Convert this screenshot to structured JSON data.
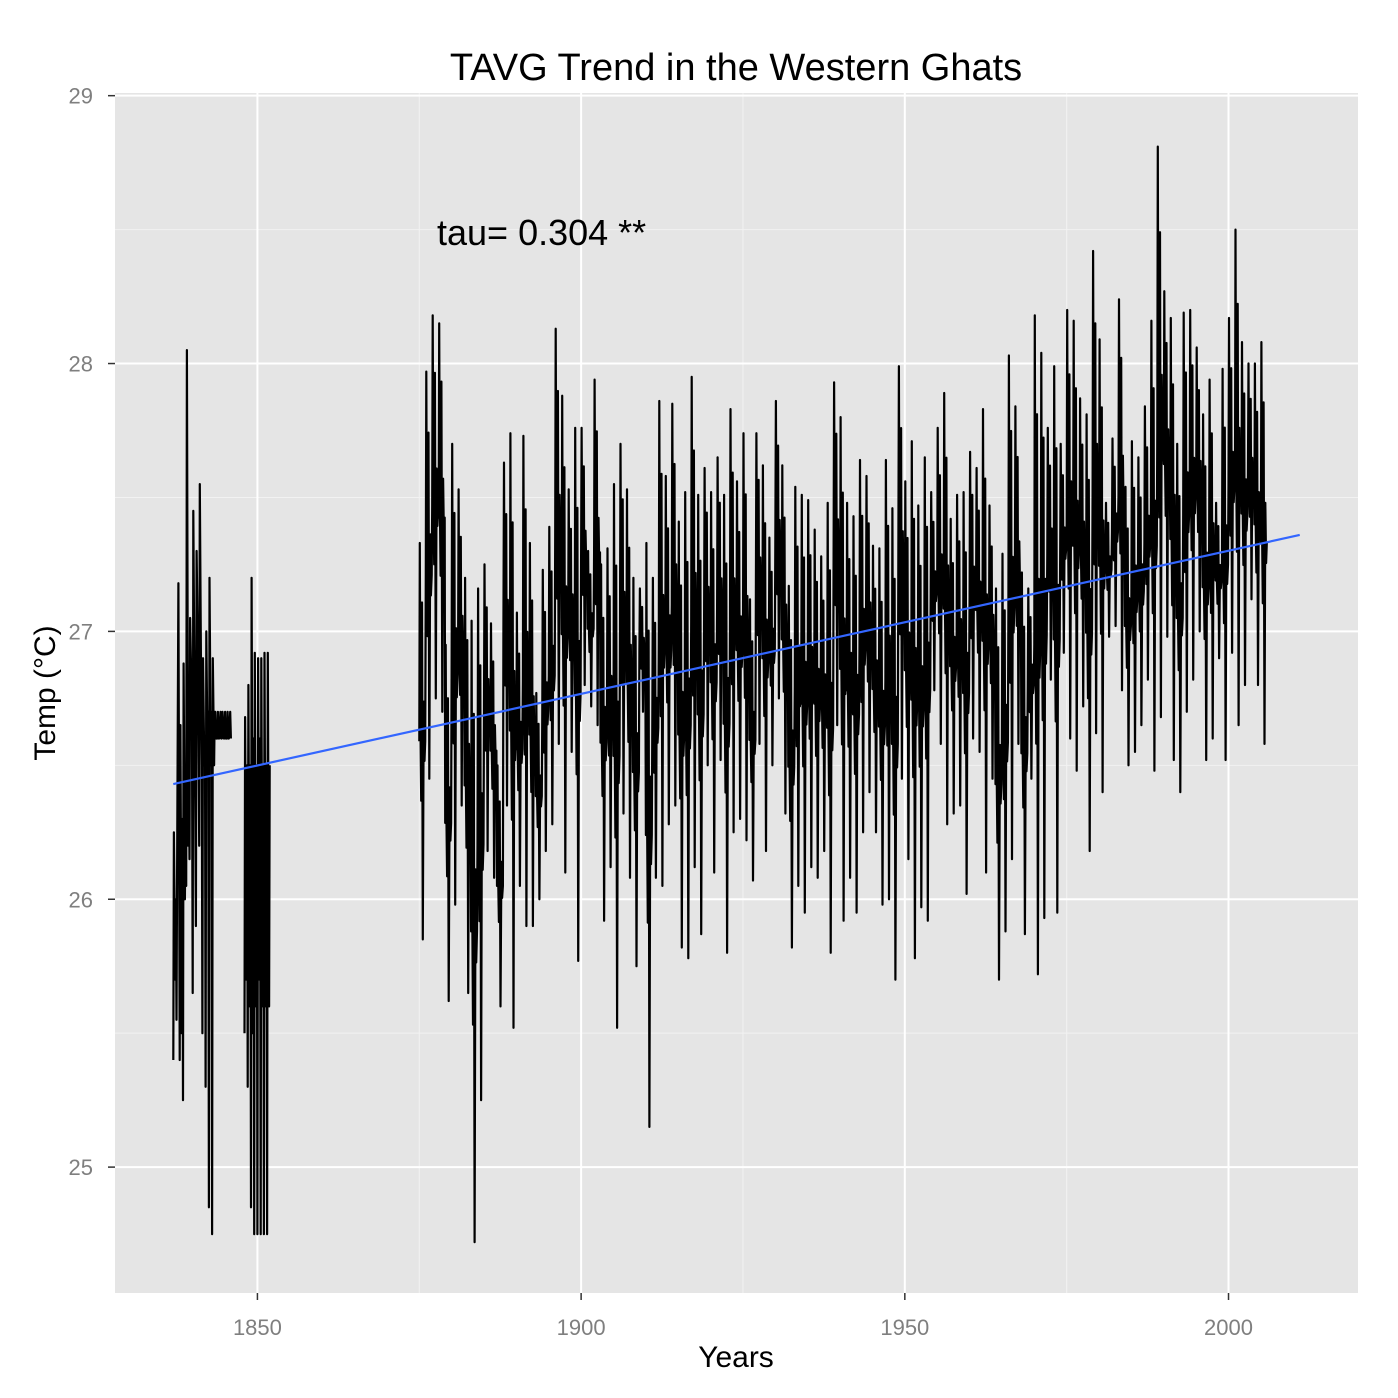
{
  "chart_data": {
    "type": "line",
    "title": "TAVG Trend in the Western Ghats",
    "xlabel": "Years",
    "ylabel": "Temp (°C)",
    "annotation": "tau= 0.304 **",
    "xlim": [
      1828,
      2020
    ],
    "ylim": [
      24.53,
      29.01
    ],
    "x_ticks": [
      1850,
      1900,
      1950,
      2000
    ],
    "y_ticks": [
      25,
      26,
      27,
      28,
      29
    ],
    "grid": true,
    "colors": {
      "panel": "#e5e5e5",
      "grid": "#ffffff",
      "series": "#000000",
      "trend": "#3366ff",
      "tick_label": "#7f7f7f"
    },
    "series": [
      {
        "kind": "monthly",
        "segments": [
          {
            "x": [
              1837.0,
              1837.1,
              1837.3,
              1837.4,
              1837.5,
              1837.6,
              1837.8,
              1837.9,
              1838.0,
              1838.1,
              1838.3,
              1838.4,
              1838.5,
              1838.6,
              1838.8,
              1838.9,
              1839.0,
              1839.1,
              1839.3,
              1839.4,
              1839.5,
              1839.6,
              1839.8,
              1839.9,
              1840.0,
              1840.1,
              1840.3,
              1840.4,
              1840.5,
              1840.6,
              1840.8,
              1840.9,
              1841.0,
              1841.1,
              1841.3,
              1841.4,
              1841.5,
              1841.6,
              1841.8,
              1841.9,
              1842.0,
              1842.1,
              1842.3,
              1842.4,
              1842.5,
              1842.6,
              1842.8,
              1842.9,
              1843.0,
              1843.1,
              1843.3,
              1843.4,
              1843.5,
              1843.6,
              1843.8,
              1843.9,
              1844.0,
              1844.1,
              1844.3,
              1844.4,
              1844.5,
              1844.6,
              1844.8,
              1844.9,
              1845.0,
              1845.1,
              1845.3,
              1845.4,
              1845.5,
              1845.6,
              1845.8,
              1845.9
            ],
            "y": [
              25.4,
              26.25,
              25.7,
              26.0,
              25.55,
              26.1,
              27.18,
              26.3,
              25.4,
              26.65,
              25.5,
              26.3,
              25.25,
              26.88,
              26.0,
              26.4,
              26.05,
              28.05,
              26.2,
              26.5,
              26.15,
              27.05,
              26.8,
              26.6,
              25.65,
              27.45,
              26.7,
              26.3,
              25.9,
              27.3,
              26.9,
              26.6,
              26.2,
              27.55,
              26.8,
              26.5,
              25.5,
              26.9,
              26.5,
              26.6,
              25.3,
              27.0,
              26.5,
              26.7,
              24.85,
              27.2,
              26.5,
              26.7,
              24.75,
              26.9,
              26.5,
              26.7,
              26.7,
              26.6,
              26.6,
              26.7,
              26.6,
              26.6,
              26.7,
              26.6,
              26.6,
              26.7,
              26.6,
              26.6,
              26.7,
              26.6,
              26.6,
              26.7,
              26.6,
              26.6,
              26.7,
              26.6
            ]
          },
          {
            "x": [
              1848.0,
              1848.1,
              1848.3,
              1848.4,
              1848.5,
              1848.6,
              1848.8,
              1848.9,
              1849.0,
              1849.1,
              1849.3,
              1849.4,
              1849.5,
              1849.6,
              1849.8,
              1849.9,
              1850.0,
              1850.1,
              1850.3,
              1850.4,
              1850.5,
              1850.6,
              1850.8,
              1850.9,
              1851.0,
              1851.1,
              1851.3,
              1851.4,
              1851.5,
              1851.6,
              1851.8,
              1851.9
            ],
            "y": [
              25.5,
              26.68,
              25.7,
              26.5,
              25.3,
              26.8,
              25.6,
              26.5,
              24.85,
              27.2,
              25.5,
              26.6,
              24.75,
              26.92,
              25.6,
              26.5,
              24.75,
              26.9,
              25.7,
              26.6,
              24.75,
              26.9,
              25.6,
              26.5,
              24.75,
              26.92,
              25.6,
              26.5,
              24.75,
              26.92,
              25.6,
              26.5
            ]
          }
        ]
      },
      {
        "kind": "annual-range",
        "x": [
          1875,
          1876,
          1877,
          1878,
          1879,
          1880,
          1881,
          1882,
          1883,
          1884,
          1885,
          1886,
          1887,
          1888,
          1889,
          1890,
          1891,
          1892,
          1893,
          1894,
          1895,
          1896,
          1897,
          1898,
          1899,
          1900,
          1901,
          1902,
          1903,
          1904,
          1905,
          1906,
          1907,
          1908,
          1909,
          1910,
          1911,
          1912,
          1913,
          1914,
          1915,
          1916,
          1917,
          1918,
          1919,
          1920,
          1921,
          1922,
          1923,
          1924,
          1925,
          1926,
          1927,
          1928,
          1929,
          1930,
          1931,
          1932,
          1933,
          1934,
          1935,
          1936,
          1937,
          1938,
          1939,
          1940,
          1941,
          1942,
          1943,
          1944,
          1945,
          1946,
          1947,
          1948,
          1949,
          1950,
          1951,
          1952,
          1953,
          1954,
          1955,
          1956,
          1957,
          1958,
          1959,
          1960,
          1961,
          1962,
          1963,
          1964,
          1965,
          1966,
          1967,
          1968,
          1969,
          1970,
          1971,
          1972,
          1973,
          1974,
          1975,
          1976,
          1977,
          1978,
          1979,
          1980,
          1981,
          1982,
          1983,
          1984,
          1985,
          1986,
          1987,
          1988,
          1989,
          1990,
          1991,
          1992,
          1993,
          1994,
          1995,
          1996,
          1997,
          1998,
          1999,
          2000,
          2001,
          2002,
          2003,
          2004,
          2005,
          2006,
          2007,
          2008,
          2009,
          2010,
          2011
        ],
        "ymin": [
          25.85,
          26.45,
          26.75,
          26.7,
          25.62,
          25.98,
          26.35,
          25.65,
          24.72,
          25.25,
          26.18,
          26.08,
          25.6,
          26.35,
          25.52,
          26.05,
          25.9,
          25.9,
          26.0,
          26.18,
          26.28,
          26.58,
          26.1,
          26.55,
          25.77,
          26.8,
          26.72,
          26.65,
          25.92,
          26.12,
          25.52,
          26.32,
          26.08,
          25.75,
          26.7,
          25.15,
          26.08,
          26.05,
          26.28,
          26.35,
          25.82,
          25.78,
          26.12,
          25.87,
          26.5,
          26.1,
          26.52,
          25.8,
          26.25,
          26.3,
          26.22,
          26.07,
          26.58,
          26.18,
          26.5,
          26.75,
          26.32,
          25.82,
          26.05,
          25.95,
          26.12,
          26.08,
          26.18,
          25.8,
          26.65,
          25.92,
          26.08,
          25.95,
          26.25,
          26.4,
          26.25,
          25.98,
          26.0,
          25.7,
          26.45,
          26.15,
          25.78,
          25.97,
          25.92,
          26.78,
          26.58,
          26.28,
          26.32,
          26.35,
          26.02,
          26.6,
          26.55,
          26.1,
          26.45,
          25.7,
          25.88,
          26.15,
          26.58,
          25.87,
          26.45,
          25.72,
          25.93,
          26.82,
          25.95,
          26.92,
          26.6,
          26.48,
          26.72,
          26.18,
          26.62,
          26.4,
          26.98,
          27.02,
          26.78,
          26.5,
          26.55,
          26.65,
          26.82,
          26.48,
          26.68,
          26.98,
          26.52,
          26.4,
          26.7,
          26.82,
          27.0,
          26.52,
          26.6,
          26.9,
          26.52,
          26.92,
          26.65,
          26.8,
          27.12,
          26.8,
          26.58
        ],
        "ymax": [
          27.33,
          27.97,
          28.18,
          28.15,
          26.95,
          27.7,
          27.53,
          27.2,
          27.04,
          27.16,
          27.25,
          27.03,
          26.5,
          27.63,
          27.74,
          27.07,
          27.73,
          27.33,
          26.77,
          27.23,
          27.39,
          28.13,
          27.88,
          27.53,
          27.76,
          27.76,
          27.3,
          27.94,
          27.25,
          27.31,
          27.55,
          27.7,
          27.53,
          27.2,
          27.16,
          27.33,
          27.2,
          27.86,
          27.58,
          27.85,
          27.41,
          27.52,
          27.95,
          27.51,
          27.61,
          27.52,
          27.65,
          27.51,
          27.83,
          27.56,
          27.74,
          27.12,
          27.74,
          27.62,
          27.35,
          27.86,
          27.62,
          27.17,
          27.54,
          27.51,
          27.49,
          27.38,
          27.28,
          27.48,
          27.93,
          27.8,
          27.48,
          27.43,
          27.64,
          27.58,
          27.32,
          27.31,
          27.64,
          27.46,
          27.99,
          27.56,
          27.71,
          27.47,
          27.65,
          27.52,
          27.76,
          27.89,
          27.42,
          27.51,
          27.52,
          27.67,
          27.61,
          27.83,
          27.47,
          27.16,
          27.29,
          28.03,
          27.84,
          27.22,
          27.16,
          28.18,
          28.04,
          27.76,
          27.99,
          27.7,
          28.2,
          28.16,
          27.87,
          27.81,
          28.42,
          28.09,
          27.48,
          27.72,
          28.24,
          27.54,
          27.71,
          27.65,
          27.84,
          28.16,
          28.81,
          28.27,
          28.17,
          27.7,
          28.19,
          28.2,
          28.06,
          27.81,
          27.94,
          27.48,
          27.98,
          28.17,
          28.5,
          28.08,
          28.0,
          28.0,
          28.08
        ]
      }
    ],
    "trend": {
      "x": [
        1837,
        2011
      ],
      "y": [
        26.43,
        27.36
      ]
    }
  }
}
